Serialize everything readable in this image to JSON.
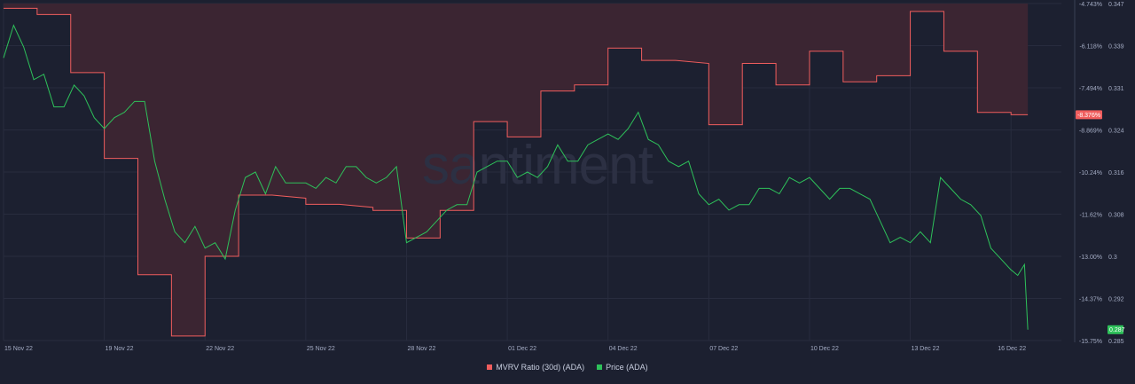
{
  "watermark": "santiment",
  "legend": {
    "mvrv_label": "MVRV Ratio (30d) (ADA)",
    "price_label": "Price (ADA)"
  },
  "colors": {
    "background": "#1c2030",
    "mvrv": "#f05d5d",
    "mvrv_fill": "#3b2532",
    "price": "#2ec15a",
    "grid": "#282c3e",
    "tick": "#a4acc4"
  },
  "chart_data": {
    "type": "line",
    "x_ticks": [
      "15 Nov 22",
      "19 Nov 22",
      "22 Nov 22",
      "25 Nov 22",
      "28 Nov 22",
      "01 Dec 22",
      "04 Dec 22",
      "07 Dec 22",
      "10 Dec 22",
      "13 Dec 22",
      "16 Dec 22"
    ],
    "x_range": [
      0,
      31.5
    ],
    "mvrv_axis": {
      "ticks": [
        "-4.743%",
        "-6.118%",
        "-7.494%",
        "-8.869%",
        "-10.24%",
        "-11.62%",
        "-13.00%",
        "-14.37%",
        "-15.75%"
      ],
      "range": [
        -15.75,
        -4.743
      ]
    },
    "price_axis": {
      "ticks": [
        "0.347",
        "0.339",
        "0.331",
        "0.324",
        "0.316",
        "0.308",
        "0.3",
        "0.292",
        "0.285"
      ],
      "range": [
        0.285,
        0.347
      ]
    },
    "current": {
      "mvrv": "-8.376%",
      "price": "0.287"
    },
    "series": [
      {
        "name": "MVRV Ratio (30d) (ADA)",
        "axis": "left",
        "points": [
          [
            0,
            -4.9
          ],
          [
            1,
            -4.9
          ],
          [
            1,
            -5.1
          ],
          [
            2,
            -5.1
          ],
          [
            2,
            -7.0
          ],
          [
            3,
            -7.0
          ],
          [
            3,
            -9.8
          ],
          [
            4,
            -9.8
          ],
          [
            4,
            -13.6
          ],
          [
            5,
            -13.6
          ],
          [
            5,
            -15.6
          ],
          [
            6,
            -15.6
          ],
          [
            6,
            -13.0
          ],
          [
            7,
            -13.0
          ],
          [
            7,
            -11.0
          ],
          [
            8,
            -11.0
          ],
          [
            9,
            -11.1
          ],
          [
            9,
            -11.3
          ],
          [
            10,
            -11.3
          ],
          [
            11,
            -11.4
          ],
          [
            11,
            -11.5
          ],
          [
            12,
            -11.5
          ],
          [
            12,
            -12.4
          ],
          [
            13,
            -12.4
          ],
          [
            13,
            -11.5
          ],
          [
            14,
            -11.5
          ],
          [
            14,
            -8.6
          ],
          [
            15,
            -8.6
          ],
          [
            15,
            -9.1
          ],
          [
            16,
            -9.1
          ],
          [
            16,
            -7.6
          ],
          [
            17,
            -7.6
          ],
          [
            17,
            -7.4
          ],
          [
            18,
            -7.4
          ],
          [
            18,
            -6.2
          ],
          [
            19,
            -6.2
          ],
          [
            19,
            -6.6
          ],
          [
            20,
            -6.6
          ],
          [
            21,
            -6.7
          ],
          [
            21,
            -8.7
          ],
          [
            22,
            -8.7
          ],
          [
            22,
            -6.7
          ],
          [
            23,
            -6.7
          ],
          [
            23,
            -7.4
          ],
          [
            24,
            -7.4
          ],
          [
            24,
            -6.3
          ],
          [
            25,
            -6.3
          ],
          [
            25,
            -7.3
          ],
          [
            26,
            -7.3
          ],
          [
            26,
            -7.1
          ],
          [
            27,
            -7.1
          ],
          [
            27,
            -5.0
          ],
          [
            28,
            -5.0
          ],
          [
            28,
            -6.3
          ],
          [
            29,
            -6.3
          ],
          [
            29,
            -8.3
          ],
          [
            30,
            -8.3
          ],
          [
            30,
            -8.376
          ],
          [
            30.5,
            -8.376
          ]
        ]
      },
      {
        "name": "Price (ADA)",
        "axis": "right",
        "points": [
          [
            0,
            0.337
          ],
          [
            0.3,
            0.343
          ],
          [
            0.6,
            0.339
          ],
          [
            0.9,
            0.333
          ],
          [
            1.2,
            0.334
          ],
          [
            1.5,
            0.328
          ],
          [
            1.8,
            0.328
          ],
          [
            2.1,
            0.332
          ],
          [
            2.4,
            0.33
          ],
          [
            2.7,
            0.326
          ],
          [
            3.0,
            0.324
          ],
          [
            3.3,
            0.326
          ],
          [
            3.6,
            0.327
          ],
          [
            3.9,
            0.329
          ],
          [
            4.2,
            0.329
          ],
          [
            4.5,
            0.318
          ],
          [
            4.8,
            0.311
          ],
          [
            5.1,
            0.305
          ],
          [
            5.4,
            0.303
          ],
          [
            5.7,
            0.306
          ],
          [
            6.0,
            0.302
          ],
          [
            6.3,
            0.303
          ],
          [
            6.6,
            0.3
          ],
          [
            6.9,
            0.309
          ],
          [
            7.2,
            0.315
          ],
          [
            7.5,
            0.316
          ],
          [
            7.8,
            0.312
          ],
          [
            8.1,
            0.317
          ],
          [
            8.4,
            0.314
          ],
          [
            8.7,
            0.314
          ],
          [
            9.0,
            0.314
          ],
          [
            9.3,
            0.313
          ],
          [
            9.6,
            0.315
          ],
          [
            9.9,
            0.314
          ],
          [
            10.2,
            0.317
          ],
          [
            10.5,
            0.317
          ],
          [
            10.8,
            0.315
          ],
          [
            11.1,
            0.314
          ],
          [
            11.4,
            0.315
          ],
          [
            11.7,
            0.317
          ],
          [
            12.0,
            0.303
          ],
          [
            12.3,
            0.304
          ],
          [
            12.6,
            0.305
          ],
          [
            12.9,
            0.307
          ],
          [
            13.2,
            0.309
          ],
          [
            13.5,
            0.31
          ],
          [
            13.8,
            0.31
          ],
          [
            14.1,
            0.316
          ],
          [
            14.4,
            0.317
          ],
          [
            14.7,
            0.318
          ],
          [
            15.0,
            0.318
          ],
          [
            15.3,
            0.315
          ],
          [
            15.6,
            0.316
          ],
          [
            15.9,
            0.315
          ],
          [
            16.2,
            0.317
          ],
          [
            16.5,
            0.321
          ],
          [
            16.8,
            0.318
          ],
          [
            17.1,
            0.318
          ],
          [
            17.4,
            0.321
          ],
          [
            17.7,
            0.322
          ],
          [
            18.0,
            0.323
          ],
          [
            18.3,
            0.322
          ],
          [
            18.6,
            0.324
          ],
          [
            18.9,
            0.327
          ],
          [
            19.2,
            0.322
          ],
          [
            19.5,
            0.321
          ],
          [
            19.8,
            0.318
          ],
          [
            20.1,
            0.317
          ],
          [
            20.4,
            0.318
          ],
          [
            20.7,
            0.312
          ],
          [
            21.0,
            0.31
          ],
          [
            21.3,
            0.311
          ],
          [
            21.6,
            0.309
          ],
          [
            21.9,
            0.31
          ],
          [
            22.2,
            0.31
          ],
          [
            22.5,
            0.313
          ],
          [
            22.8,
            0.313
          ],
          [
            23.1,
            0.312
          ],
          [
            23.4,
            0.315
          ],
          [
            23.7,
            0.314
          ],
          [
            24.0,
            0.315
          ],
          [
            24.3,
            0.313
          ],
          [
            24.6,
            0.311
          ],
          [
            24.9,
            0.313
          ],
          [
            25.2,
            0.313
          ],
          [
            25.5,
            0.312
          ],
          [
            25.8,
            0.311
          ],
          [
            26.1,
            0.307
          ],
          [
            26.4,
            0.303
          ],
          [
            26.7,
            0.304
          ],
          [
            27.0,
            0.303
          ],
          [
            27.3,
            0.305
          ],
          [
            27.6,
            0.303
          ],
          [
            27.9,
            0.315
          ],
          [
            28.2,
            0.313
          ],
          [
            28.5,
            0.311
          ],
          [
            28.8,
            0.31
          ],
          [
            29.1,
            0.308
          ],
          [
            29.4,
            0.302
          ],
          [
            29.7,
            0.3
          ],
          [
            30.0,
            0.298
          ],
          [
            30.2,
            0.297
          ],
          [
            30.4,
            0.299
          ],
          [
            30.5,
            0.287
          ]
        ]
      }
    ]
  }
}
